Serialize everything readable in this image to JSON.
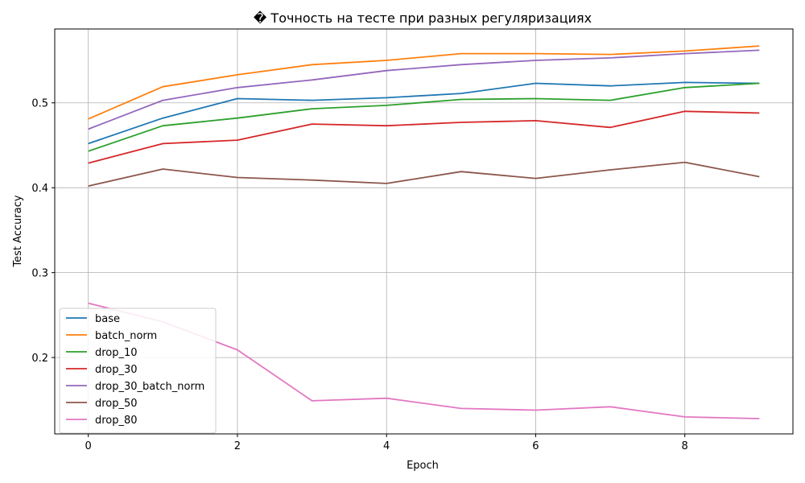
{
  "chart_data": {
    "type": "line",
    "title": "� Точность на тесте при разных регуляризациях",
    "xlabel": "Epoch",
    "ylabel": "Test Accuracy",
    "x": [
      0,
      1,
      2,
      3,
      4,
      5,
      6,
      7,
      8,
      9
    ],
    "xlim": [
      -0.45,
      9.45
    ],
    "ylim": [
      0.11,
      0.587
    ],
    "xticks": [
      0,
      2,
      4,
      6,
      8
    ],
    "yticks": [
      0.2,
      0.3,
      0.4,
      0.5
    ],
    "xtick_labels": [
      "0",
      "2",
      "4",
      "6",
      "8"
    ],
    "ytick_labels": [
      "0.2",
      "0.3",
      "0.4",
      "0.5"
    ],
    "grid": true,
    "legend_position": "lower-left",
    "series": [
      {
        "name": "base",
        "color": "#1f77b4",
        "values": [
          0.452,
          0.482,
          0.505,
          0.503,
          0.506,
          0.511,
          0.523,
          0.52,
          0.524,
          0.523
        ]
      },
      {
        "name": "batch_norm",
        "color": "#ff7f0e",
        "values": [
          0.481,
          0.519,
          0.533,
          0.545,
          0.55,
          0.558,
          0.558,
          0.557,
          0.561,
          0.567
        ]
      },
      {
        "name": "drop_10",
        "color": "#2ca02c",
        "values": [
          0.443,
          0.473,
          0.482,
          0.493,
          0.497,
          0.504,
          0.505,
          0.503,
          0.518,
          0.523
        ]
      },
      {
        "name": "drop_30",
        "color": "#d62728",
        "values": [
          0.429,
          0.452,
          0.456,
          0.475,
          0.473,
          0.477,
          0.479,
          0.471,
          0.49,
          0.488
        ]
      },
      {
        "name": "drop_30_batch_norm",
        "color": "#9467bd",
        "values": [
          0.469,
          0.503,
          0.518,
          0.527,
          0.538,
          0.545,
          0.55,
          0.553,
          0.558,
          0.562
        ]
      },
      {
        "name": "drop_50",
        "color": "#8c564b",
        "values": [
          0.402,
          0.422,
          0.412,
          0.409,
          0.405,
          0.419,
          0.411,
          0.421,
          0.43,
          0.413
        ]
      },
      {
        "name": "drop_80",
        "color": "#e377c2",
        "values": [
          0.264,
          0.242,
          0.209,
          0.149,
          0.152,
          0.14,
          0.138,
          0.142,
          0.13,
          0.128
        ]
      }
    ]
  }
}
